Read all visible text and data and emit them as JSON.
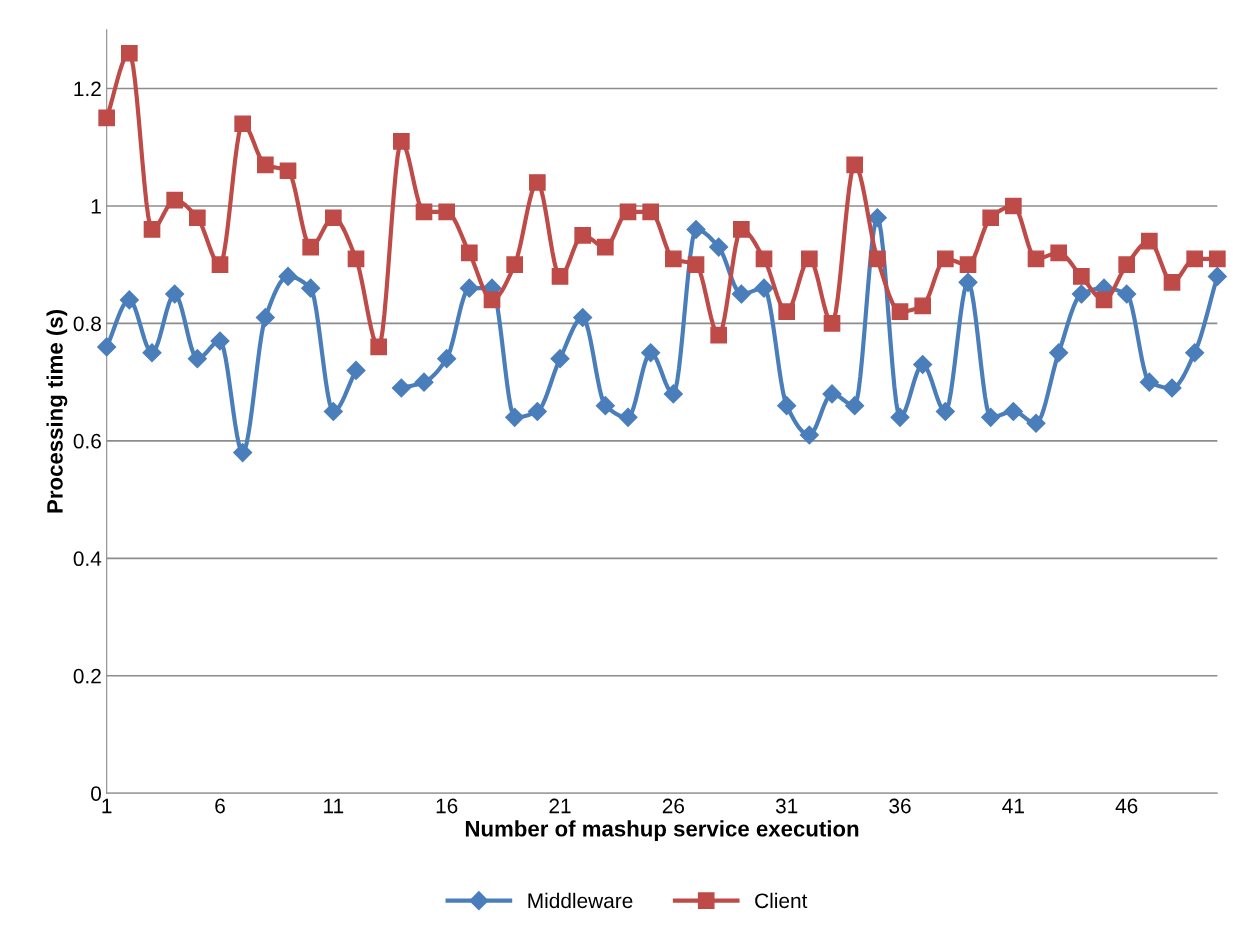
{
  "chart_data": {
    "type": "line",
    "xlabel": "Number of mashup service execution",
    "ylabel": "Processing time (s)",
    "x": [
      1,
      2,
      3,
      4,
      5,
      6,
      7,
      8,
      9,
      10,
      11,
      12,
      13,
      14,
      15,
      16,
      17,
      18,
      19,
      20,
      21,
      22,
      23,
      24,
      25,
      26,
      27,
      28,
      29,
      30,
      31,
      32,
      33,
      34,
      35,
      36,
      37,
      38,
      39,
      40,
      41,
      42,
      43,
      44,
      45,
      46,
      47,
      48,
      49,
      50
    ],
    "xlim": [
      1,
      50
    ],
    "xticks": [
      1,
      6,
      11,
      16,
      21,
      26,
      31,
      36,
      41,
      46
    ],
    "ylim": [
      0,
      1.3
    ],
    "yticks": [
      0,
      0.2,
      0.4,
      0.6,
      0.8,
      1,
      1.2
    ],
    "grid": "y",
    "legend": "bottom",
    "series": [
      {
        "name": "Middleware",
        "color": "#4a7ebb",
        "marker": "diamond",
        "values": [
          0.76,
          0.84,
          0.75,
          0.85,
          0.74,
          0.77,
          0.58,
          0.81,
          0.88,
          0.86,
          0.65,
          0.72,
          null,
          0.69,
          0.7,
          0.74,
          0.86,
          0.86,
          0.64,
          0.65,
          0.74,
          0.81,
          0.66,
          0.64,
          0.75,
          0.68,
          0.96,
          0.93,
          0.85,
          0.86,
          0.66,
          0.61,
          0.68,
          0.66,
          0.98,
          0.64,
          0.73,
          0.65,
          0.87,
          0.64,
          0.65,
          0.63,
          0.75,
          0.85,
          0.86,
          0.85,
          0.7,
          0.69,
          0.75,
          0.88
        ]
      },
      {
        "name": "Client",
        "color": "#be4b48",
        "marker": "square",
        "values": [
          1.15,
          1.26,
          0.96,
          1.01,
          0.98,
          0.9,
          1.14,
          1.07,
          1.06,
          0.93,
          0.98,
          0.91,
          0.76,
          1.11,
          0.99,
          0.99,
          0.92,
          0.84,
          0.9,
          1.04,
          0.88,
          0.95,
          0.93,
          0.99,
          0.99,
          0.91,
          0.9,
          0.78,
          0.96,
          0.91,
          0.82,
          0.91,
          0.8,
          1.07,
          0.91,
          0.82,
          0.83,
          0.91,
          0.9,
          0.98,
          1.0,
          0.91,
          0.92,
          0.88,
          0.84,
          0.9,
          0.94,
          0.87,
          0.91,
          0.91
        ]
      }
    ]
  }
}
